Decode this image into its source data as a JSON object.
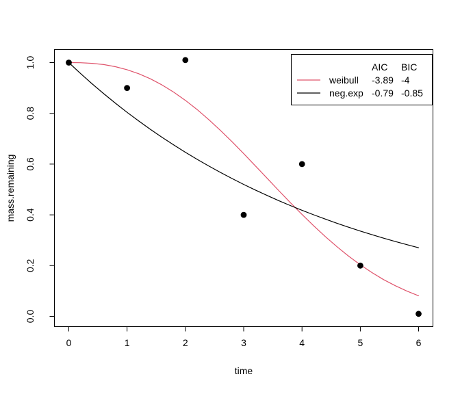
{
  "figure": {
    "background": "#ffffff",
    "foreground": "#000000"
  },
  "chart_data": {
    "type": "scatter",
    "title": "",
    "xlabel": "time",
    "ylabel": "mass.remaining",
    "grid": false,
    "xlim": [
      -0.246,
      6.246
    ],
    "ylim": [
      -0.0404,
      1.0512
    ],
    "x_ticks": [
      0,
      1,
      2,
      3,
      4,
      5,
      6
    ],
    "y_ticks": [
      "0.0",
      "0.2",
      "0.4",
      "0.6",
      "0.8",
      "1.0"
    ],
    "y_tick_values": [
      0,
      0.2,
      0.4,
      0.6,
      0.8,
      1.0
    ],
    "points": {
      "x": [
        0,
        1,
        2,
        3,
        4,
        5,
        6
      ],
      "y": [
        1.0,
        0.9,
        1.01,
        0.4,
        0.6,
        0.2,
        0.01
      ],
      "color": "#000000",
      "marker": "filled-circle"
    },
    "series": [
      {
        "name": "weibull",
        "color": "#DF536B",
        "x": [
          0,
          0.2,
          0.4,
          0.6,
          0.8,
          1,
          1.2,
          1.4,
          1.6,
          1.8,
          2,
          2.2,
          2.4,
          2.6,
          2.8,
          3,
          3.2,
          3.4,
          3.6,
          3.8,
          4,
          4.2,
          4.4,
          4.6,
          4.8,
          5,
          5.2,
          5.4,
          5.6,
          5.8,
          6
        ],
        "y": [
          1,
          0.9995,
          0.9971,
          0.9921,
          0.9838,
          0.9719,
          0.956,
          0.936,
          0.9118,
          0.8835,
          0.8511,
          0.8151,
          0.7755,
          0.733,
          0.6881,
          0.6412,
          0.5933,
          0.5447,
          0.4961,
          0.4482,
          0.402,
          0.3569,
          0.3143,
          0.2743,
          0.2372,
          0.2033,
          0.1725,
          0.1449,
          0.1207,
          0.0994,
          0.0811
        ]
      },
      {
        "name": "neg.exp",
        "color": "#000000",
        "x": [
          0,
          0.2,
          0.4,
          0.6,
          0.8,
          1,
          1.2,
          1.4,
          1.6,
          1.8,
          2,
          2.2,
          2.4,
          2.6,
          2.8,
          3,
          3.2,
          3.4,
          3.6,
          3.8,
          4,
          4.2,
          4.4,
          4.6,
          4.8,
          5,
          5.2,
          5.4,
          5.6,
          5.8,
          6
        ],
        "y": [
          1,
          0.9573,
          0.9165,
          0.8774,
          0.84,
          0.8041,
          0.7698,
          0.737,
          0.7055,
          0.6754,
          0.6466,
          0.619,
          0.5926,
          0.5673,
          0.5431,
          0.5199,
          0.4978,
          0.4765,
          0.4562,
          0.4367,
          0.4181,
          0.4003,
          0.3832,
          0.3668,
          0.3512,
          0.3362,
          0.3219,
          0.3081,
          0.295,
          0.2824,
          0.2703
        ]
      }
    ],
    "legend": {
      "position": "topright",
      "columns": [
        "AIC",
        "BIC"
      ],
      "rows": [
        {
          "label": "weibull",
          "aic": "-3.89",
          "bic": "-4",
          "color": "#DF536B"
        },
        {
          "label": "neg.exp",
          "aic": "-0.79",
          "bic": "-0.85",
          "color": "#000000"
        }
      ]
    }
  }
}
